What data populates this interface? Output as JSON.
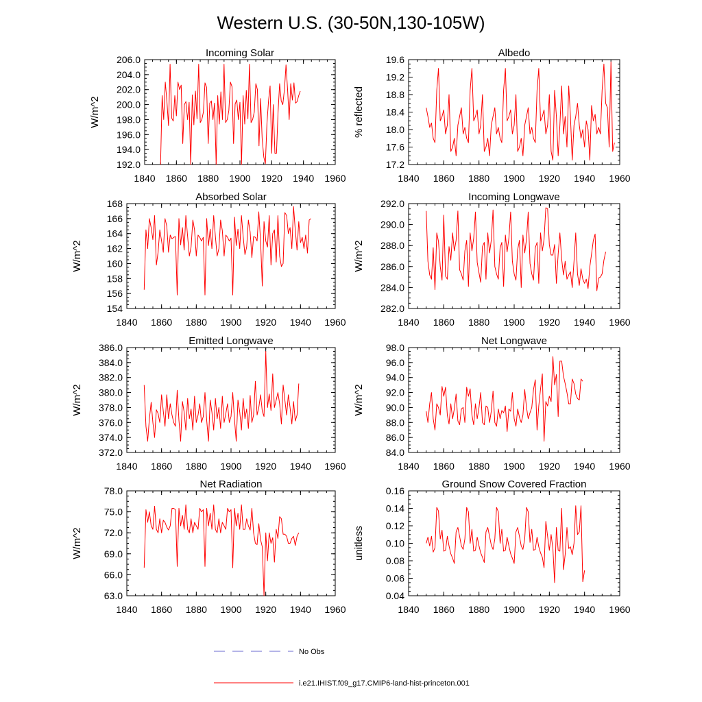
{
  "figure": {
    "title": "Western U.S. (30-50N,130-105W)"
  },
  "legend": {
    "items": [
      {
        "label": "No Obs",
        "color": "#6a6ad0",
        "dash": true
      },
      {
        "label": "i.e21.IHIST.f09_g17.CMIP6-land-hist-princeton.001",
        "color": "#ff0000",
        "dash": false
      }
    ]
  },
  "chart_data": [
    {
      "type": "line",
      "title": "Incoming Solar",
      "ylabel": "W/m^2",
      "xlim": [
        1840,
        1960
      ],
      "ylim": [
        192.0,
        206.0
      ],
      "xticks": [
        1840,
        1860,
        1880,
        1900,
        1920,
        1940,
        1960
      ],
      "yticks": [
        192.0,
        194.0,
        196.0,
        198.0,
        200.0,
        202.0,
        204.0,
        206.0
      ],
      "yfmt": 1,
      "series": [
        {
          "color": "#ff0000",
          "x0": 1850,
          "values": [
            192.0,
            201.2,
            198.0,
            203.0,
            200.5,
            197.2,
            205.4,
            198.2,
            197.8,
            201.2,
            198.5,
            203.0,
            202.0,
            202.6,
            194.8,
            200.0,
            200.4,
            198.0,
            200.3,
            192.0,
            201.3,
            197.3,
            201.8,
            198.1,
            205.4,
            197.6,
            198.0,
            199.0,
            202.9,
            202.3,
            194.8,
            200.2,
            200.5,
            198.0,
            200.2,
            192.0,
            201.2,
            197.4,
            201.7,
            198.0,
            205.4,
            197.6,
            198.0,
            199.2,
            203.0,
            202.4,
            194.8,
            200.1,
            200.6,
            198.0,
            200.3,
            192.0,
            201.2,
            197.4,
            201.9,
            198.1,
            205.4,
            197.6,
            198.0,
            199.0,
            202.8,
            202.0,
            194.5,
            200.8,
            195.5,
            193.0,
            192.1,
            197.5,
            200.5,
            202.5,
            193.5,
            200.0,
            193.5,
            193.5,
            199.0,
            202.8,
            200.5,
            200.0,
            202.0,
            205.3,
            202.0,
            198.0,
            202.8,
            200.6,
            202.9,
            200.2,
            200.4,
            201.2,
            201.8
          ]
        }
      ]
    },
    {
      "type": "line",
      "title": "Albedo",
      "ylabel": "% reflected",
      "xlim": [
        1840,
        1960
      ],
      "ylim": [
        17.2,
        19.6
      ],
      "xticks": [
        1840,
        1860,
        1880,
        1900,
        1920,
        1940,
        1960
      ],
      "yticks": [
        17.2,
        17.6,
        18.0,
        18.4,
        18.8,
        19.2,
        19.6
      ],
      "yfmt": 1,
      "series": [
        {
          "color": "#ff0000",
          "x0": 1850,
          "values": [
            18.5,
            18.3,
            18.05,
            18.15,
            17.8,
            17.7,
            18.9,
            19.4,
            18.2,
            18.3,
            18.45,
            17.9,
            18.1,
            18.8,
            17.5,
            17.6,
            17.8,
            17.4,
            18.1,
            18.3,
            18.5,
            17.9,
            18.05,
            17.8,
            17.7,
            18.9,
            19.4,
            18.2,
            18.3,
            18.45,
            17.9,
            18.1,
            18.8,
            17.5,
            17.6,
            17.8,
            17.4,
            18.1,
            18.3,
            18.5,
            17.9,
            18.05,
            17.8,
            17.7,
            18.9,
            19.4,
            18.2,
            18.3,
            18.45,
            17.9,
            18.1,
            18.8,
            17.5,
            17.6,
            17.8,
            17.4,
            18.1,
            18.3,
            18.5,
            17.9,
            18.05,
            17.8,
            17.7,
            18.9,
            19.4,
            18.2,
            18.3,
            18.45,
            17.9,
            18.1,
            18.8,
            17.5,
            17.3,
            18.9,
            18.3,
            17.4,
            18.1,
            19.0,
            17.9,
            18.3,
            17.6,
            19.0,
            18.3,
            17.3,
            18.1,
            18.3,
            18.6,
            18.1,
            17.8,
            18.0,
            17.6,
            18.2,
            18.0,
            17.3,
            18.55,
            18.2,
            18.35,
            17.9,
            18.05,
            17.9,
            18.9,
            19.5,
            18.6,
            18.5,
            17.6,
            19.55,
            17.5,
            17.7
          ]
        }
      ]
    },
    {
      "type": "line",
      "title": "Absorbed Solar",
      "ylabel": "W/m^2",
      "xlim": [
        1840,
        1960
      ],
      "ylim": [
        154,
        168
      ],
      "xticks": [
        1840,
        1860,
        1880,
        1900,
        1920,
        1940,
        1960
      ],
      "yticks": [
        154,
        156,
        158,
        160,
        162,
        164,
        166,
        168
      ],
      "yfmt": 0,
      "series": [
        {
          "color": "#ff0000",
          "x0": 1850,
          "values": [
            156.5,
            164.5,
            162.0,
            166.0,
            164.8,
            163.2,
            166.4,
            159.8,
            161.5,
            164.5,
            163.0,
            161.5,
            166.0,
            165.0,
            161.5,
            163.8,
            163.3,
            163.5,
            163.6,
            155.8,
            166.0,
            162.5,
            164.8,
            161.8,
            166.4,
            163.6,
            161.0,
            162.2,
            165.8,
            164.5,
            161.0,
            163.8,
            163.5,
            163.0,
            163.5,
            155.8,
            166.0,
            162.4,
            164.6,
            162.0,
            166.4,
            163.6,
            161.0,
            162.0,
            165.8,
            164.4,
            161.0,
            163.8,
            163.5,
            163.0,
            163.4,
            155.8,
            166.2,
            162.4,
            164.6,
            162.0,
            166.4,
            163.6,
            161.2,
            162.2,
            165.8,
            164.2,
            160.8,
            163.6,
            163.5,
            163.0,
            166.9,
            163.0,
            157.0,
            165.6,
            163.0,
            162.2,
            166.4,
            159.8,
            164.0,
            164.5,
            160.2,
            166.4,
            161.0,
            159.6,
            160.0,
            166.8,
            166.4,
            164.0,
            164.8,
            162.0,
            167.6,
            164.5,
            161.8,
            165.6,
            162.8,
            163.5,
            162.0,
            163.8,
            161.4,
            165.8,
            166.0
          ]
        }
      ]
    },
    {
      "type": "line",
      "title": "Incoming Longwave",
      "ylabel": "W/m^2",
      "xlim": [
        1840,
        1960
      ],
      "ylim": [
        282.0,
        292.0
      ],
      "xticks": [
        1840,
        1860,
        1880,
        1900,
        1920,
        1940,
        1960
      ],
      "yticks": [
        282.0,
        284.0,
        286.0,
        288.0,
        290.0,
        292.0
      ],
      "yfmt": 1,
      "series": [
        {
          "color": "#ff0000",
          "x0": 1850,
          "values": [
            291.3,
            286.5,
            285.2,
            284.8,
            287.8,
            283.8,
            289.2,
            288.4,
            286.0,
            284.7,
            290.9,
            285.1,
            284.8,
            287.9,
            286.6,
            289.2,
            287.5,
            288.5,
            291.3,
            285.7,
            285.3,
            284.7,
            287.5,
            288.5,
            284.1,
            289.2,
            287.5,
            288.7,
            291.2,
            286.4,
            285.4,
            284.5,
            287.9,
            288.3,
            284.8,
            289.2,
            287.3,
            288.5,
            291.4,
            286.0,
            285.3,
            284.8,
            287.8,
            288.3,
            284.1,
            289.0,
            287.4,
            288.7,
            291.2,
            286.5,
            285.3,
            284.7,
            287.6,
            288.5,
            284.0,
            289.0,
            287.3,
            288.6,
            291.2,
            286.3,
            285.3,
            284.7,
            287.8,
            288.3,
            284.4,
            289.2,
            287.5,
            288.6,
            291.6,
            291.5,
            288.1,
            287.1,
            287.1,
            288.1,
            284.4,
            287.2,
            289.2,
            286.7,
            285.2,
            286.5,
            284.8,
            285.2,
            285.5,
            284.0,
            286.5,
            289.2,
            285.3,
            284.2,
            285.8,
            284.8,
            284.4,
            284.8,
            283.9,
            286.0,
            287.2,
            288.5,
            289.1,
            283.7,
            284.9,
            285.0,
            285.3,
            286.6,
            287.4
          ]
        }
      ]
    },
    {
      "type": "line",
      "title": "Emitted Longwave",
      "ylabel": "W/m^2",
      "xlim": [
        1840,
        1960
      ],
      "ylim": [
        372.0,
        386.0
      ],
      "xticks": [
        1840,
        1860,
        1880,
        1900,
        1920,
        1940,
        1960
      ],
      "yticks": [
        372.0,
        374.0,
        376.0,
        378.0,
        380.0,
        382.0,
        384.0,
        386.0
      ],
      "yfmt": 1,
      "series": [
        {
          "color": "#ff0000",
          "x0": 1850,
          "values": [
            381.0,
            375.5,
            373.5,
            376.5,
            378.7,
            376.0,
            374.0,
            377.7,
            377.2,
            376.0,
            379.7,
            377.5,
            375.5,
            379.7,
            376.5,
            378.5,
            377.0,
            376.0,
            375.5,
            380.3,
            376.3,
            373.5,
            378.8,
            377.4,
            375.0,
            379.2,
            376.5,
            377.8,
            375.0,
            379.5,
            376.0,
            377.0,
            378.5,
            376.0,
            376.8,
            380.0,
            376.3,
            373.5,
            379.0,
            377.4,
            375.0,
            379.2,
            376.5,
            378.0,
            375.2,
            379.5,
            376.0,
            377.2,
            378.5,
            376.0,
            376.8,
            380.0,
            376.3,
            373.5,
            379.0,
            377.4,
            375.0,
            379.2,
            376.5,
            377.8,
            375.2,
            379.6,
            376.0,
            377.0,
            381.5,
            377.0,
            378.0,
            379.7,
            377.5,
            376.8,
            385.5,
            378.0,
            379.8,
            377.6,
            382.5,
            378.0,
            379.0,
            380.0,
            378.5,
            375.8,
            381.0,
            379.0,
            377.0,
            379.7,
            378.0,
            375.8,
            378.8,
            376.2,
            377.0,
            381.2
          ]
        }
      ]
    },
    {
      "type": "line",
      "title": "Net Longwave",
      "ylabel": "W/m^2",
      "xlim": [
        1840,
        1960
      ],
      "ylim": [
        84.0,
        98.0
      ],
      "xticks": [
        1840,
        1860,
        1880,
        1900,
        1920,
        1940,
        1960
      ],
      "yticks": [
        84.0,
        86.0,
        88.0,
        90.0,
        92.0,
        94.0,
        96.0,
        98.0
      ],
      "yfmt": 1,
      "series": [
        {
          "color": "#ff0000",
          "x0": 1850,
          "values": [
            89.5,
            88.0,
            90.5,
            92.0,
            88.5,
            87.0,
            90.5,
            90.0,
            89.0,
            92.8,
            91.5,
            92.7,
            89.0,
            87.8,
            90.5,
            88.5,
            89.8,
            91.8,
            88.2,
            87.7,
            89.8,
            90.0,
            88.0,
            92.7,
            91.5,
            92.5,
            89.0,
            87.7,
            90.5,
            88.5,
            90.0,
            92.0,
            88.0,
            87.7,
            90.2,
            90.0,
            88.0,
            89.5,
            92.2,
            88.0,
            87.5,
            89.8,
            88.5,
            89.6,
            89.3,
            90.2,
            86.8,
            89.8,
            89.5,
            92.0,
            88.5,
            87.5,
            89.8,
            88.7,
            88.0,
            89.0,
            92.4,
            90.0,
            88.5,
            89.3,
            90.0,
            92.4,
            93.7,
            87.0,
            90.2,
            92.5,
            94.5,
            85.5,
            90.8,
            90.2,
            91.5,
            90.8,
            96.8,
            93.0,
            94.4,
            88.8,
            96.2,
            96.2,
            94.2,
            93.2,
            92.0,
            90.5,
            90.5,
            93.8,
            93.2,
            91.8,
            91.2,
            91.0,
            93.8,
            93.5
          ]
        }
      ]
    },
    {
      "type": "line",
      "title": "Net Radiation",
      "ylabel": "W/m^2",
      "xlim": [
        1840,
        1960
      ],
      "ylim": [
        63.0,
        78.0
      ],
      "xticks": [
        1840,
        1860,
        1880,
        1900,
        1920,
        1940,
        1960
      ],
      "yticks": [
        63.0,
        66.0,
        69.0,
        72.0,
        75.0,
        78.0
      ],
      "yfmt": 1,
      "series": [
        {
          "color": "#ff0000",
          "x0": 1850,
          "values": [
            67.0,
            75.3,
            73.5,
            75.0,
            73.0,
            72.5,
            75.8,
            72.5,
            72.0,
            74.0,
            72.0,
            73.8,
            73.5,
            72.8,
            72.4,
            73.0,
            75.5,
            75.5,
            75.3,
            67.2,
            75.5,
            73.0,
            74.5,
            72.5,
            76.0,
            72.5,
            72.0,
            74.0,
            72.0,
            73.5,
            73.0,
            72.5,
            75.5,
            75.0,
            75.3,
            67.2,
            75.5,
            73.0,
            74.8,
            72.5,
            76.0,
            72.5,
            72.0,
            74.0,
            72.0,
            73.5,
            73.0,
            72.5,
            75.5,
            75.0,
            75.3,
            67.0,
            75.5,
            73.0,
            74.8,
            72.5,
            76.0,
            72.5,
            72.5,
            74.0,
            73.0,
            72.4,
            75.5,
            72.0,
            70.5,
            70.3,
            73.3,
            71.0,
            70.0,
            63.0,
            72.0,
            68.0,
            72.0,
            70.5,
            71.3,
            67.8,
            72.5,
            71.2,
            74.3,
            74.0,
            71.8,
            71.8,
            71.5,
            70.5,
            70.5,
            71.2,
            71.5,
            70.2,
            71.5,
            72.0
          ]
        }
      ]
    },
    {
      "type": "line",
      "title": "Ground Snow Covered Fraction",
      "ylabel": "unitless",
      "xlim": [
        1840,
        1960
      ],
      "ylim": [
        0.04,
        0.16
      ],
      "xticks": [
        1840,
        1860,
        1880,
        1900,
        1920,
        1940,
        1960
      ],
      "yticks": [
        0.04,
        0.06,
        0.08,
        0.1,
        0.12,
        0.14,
        0.16
      ],
      "yfmt": 2,
      "series": [
        {
          "color": "#ff0000",
          "x0": 1850,
          "values": [
            0.1,
            0.107,
            0.097,
            0.108,
            0.09,
            0.095,
            0.141,
            0.137,
            0.105,
            0.115,
            0.091,
            0.092,
            0.108,
            0.097,
            0.088,
            0.083,
            0.077,
            0.113,
            0.118,
            0.108,
            0.097,
            0.093,
            0.105,
            0.141,
            0.136,
            0.1,
            0.116,
            0.091,
            0.092,
            0.107,
            0.097,
            0.089,
            0.084,
            0.078,
            0.113,
            0.118,
            0.108,
            0.098,
            0.093,
            0.105,
            0.141,
            0.136,
            0.1,
            0.116,
            0.091,
            0.092,
            0.107,
            0.097,
            0.088,
            0.083,
            0.077,
            0.113,
            0.118,
            0.108,
            0.097,
            0.093,
            0.105,
            0.141,
            0.136,
            0.101,
            0.116,
            0.092,
            0.093,
            0.107,
            0.096,
            0.089,
            0.084,
            0.072,
            0.125,
            0.108,
            0.092,
            0.11,
            0.094,
            0.055,
            0.118,
            0.092,
            0.091,
            0.14,
            0.07,
            0.087,
            0.118,
            0.094,
            0.096,
            0.087,
            0.1,
            0.143,
            0.11,
            0.113,
            0.143,
            0.056,
            0.069
          ]
        }
      ]
    }
  ]
}
